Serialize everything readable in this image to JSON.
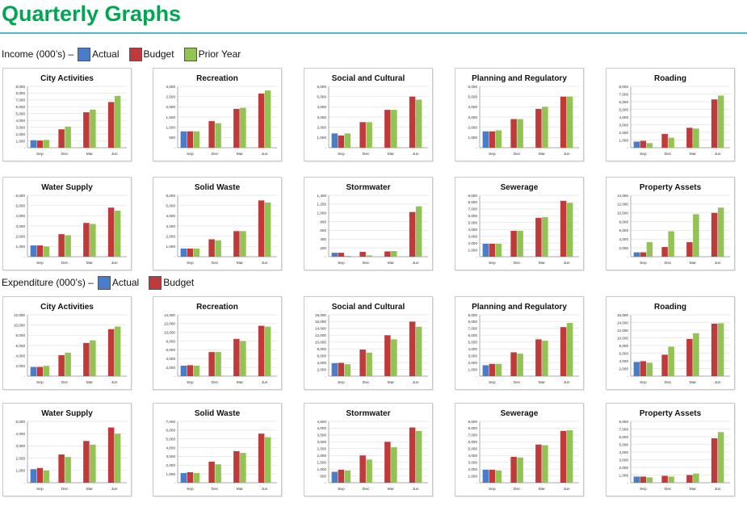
{
  "page": {
    "title": "Quarterly Graphs"
  },
  "colors": {
    "title": "#00a651",
    "rule": "#4fb8c2",
    "actual": "#4a7dc9",
    "budget": "#c0393b",
    "prior_year": "#92c353",
    "grid": "#e2e2e2",
    "axis": "#8c8c8c"
  },
  "legends": [
    {
      "section": "Income (000’s) –",
      "items": [
        {
          "label": "Actual",
          "key": "actual"
        },
        {
          "label": "Budget",
          "key": "budget"
        },
        {
          "label": "Prior Year",
          "key": "prior_year"
        }
      ]
    },
    {
      "section": "Expenditure (000’s) –",
      "items": [
        {
          "label": "Actual",
          "key": "actual"
        },
        {
          "label": "Budget",
          "key": "budget"
        }
      ]
    }
  ],
  "chart_data": [
    {
      "section": "income",
      "type": "bar",
      "title": "City Activities",
      "categories": [
        "Sep",
        "Dec",
        "Mar",
        "Jun"
      ],
      "yticks": [
        "-",
        "1,000",
        "2,000",
        "3,000",
        "4,000",
        "5,000",
        "6,000",
        "7,000",
        "8,000",
        "9,000"
      ],
      "ylim": [
        0,
        9000
      ],
      "series": [
        {
          "name": "Actual",
          "values": [
            1100,
            null,
            null,
            null
          ]
        },
        {
          "name": "Budget",
          "values": [
            1050,
            2700,
            5200,
            6700
          ]
        },
        {
          "name": "Prior Year",
          "values": [
            1150,
            3100,
            5600,
            7600
          ]
        }
      ]
    },
    {
      "section": "income",
      "type": "bar",
      "title": "Recreation",
      "categories": [
        "Sep",
        "Dec",
        "Mar",
        "Jun"
      ],
      "yticks": [
        "-",
        "500",
        "1,000",
        "1,500",
        "2,000",
        "2,500",
        "3,000"
      ],
      "ylim": [
        0,
        3000
      ],
      "series": [
        {
          "name": "Actual",
          "values": [
            800,
            null,
            null,
            null
          ]
        },
        {
          "name": "Budget",
          "values": [
            800,
            1300,
            1900,
            2650
          ]
        },
        {
          "name": "Prior Year",
          "values": [
            800,
            1200,
            1950,
            2800
          ]
        }
      ]
    },
    {
      "section": "income",
      "type": "bar",
      "title": "Social and Cultural",
      "categories": [
        "Sep",
        "Dec",
        "Mar",
        "Jun"
      ],
      "yticks": [
        "-",
        "1,000",
        "2,000",
        "3,000",
        "4,000",
        "5,000",
        "6,000"
      ],
      "ylim": [
        0,
        6000
      ],
      "series": [
        {
          "name": "Actual",
          "values": [
            1400,
            null,
            null,
            null
          ]
        },
        {
          "name": "Budget",
          "values": [
            1200,
            2500,
            3700,
            5000
          ]
        },
        {
          "name": "Prior Year",
          "values": [
            1400,
            2500,
            3700,
            4700
          ]
        }
      ]
    },
    {
      "section": "income",
      "type": "bar",
      "title": "Planning and Regulatory",
      "categories": [
        "Sep",
        "Dec",
        "Mar",
        "Jun"
      ],
      "yticks": [
        "-",
        "1,000",
        "2,000",
        "3,000",
        "4,000",
        "5,000",
        "6,000"
      ],
      "ylim": [
        0,
        6000
      ],
      "series": [
        {
          "name": "Actual",
          "values": [
            1600,
            null,
            null,
            null
          ]
        },
        {
          "name": "Budget",
          "values": [
            1600,
            2800,
            3800,
            5000
          ]
        },
        {
          "name": "Prior Year",
          "values": [
            1700,
            2800,
            4000,
            5000
          ]
        }
      ]
    },
    {
      "section": "income",
      "type": "bar",
      "title": "Roading",
      "categories": [
        "Sep",
        "Dec",
        "Mar",
        "Jun"
      ],
      "yticks": [
        "-",
        "1,000",
        "2,000",
        "3,000",
        "4,000",
        "5,000",
        "6,000",
        "7,000",
        "8,000"
      ],
      "ylim": [
        0,
        8000
      ],
      "series": [
        {
          "name": "Actual",
          "values": [
            800,
            null,
            null,
            null
          ]
        },
        {
          "name": "Budget",
          "values": [
            900,
            1800,
            2600,
            6300
          ]
        },
        {
          "name": "Prior Year",
          "values": [
            600,
            1300,
            2500,
            6800
          ]
        }
      ]
    },
    {
      "section": "income",
      "type": "bar",
      "title": "Water Supply",
      "categories": [
        "Sep",
        "Dec",
        "Mar",
        "Jun"
      ],
      "yticks": [
        "-",
        "1,000",
        "2,000",
        "3,000",
        "4,000",
        "5,000",
        "6,000"
      ],
      "ylim": [
        0,
        6000
      ],
      "series": [
        {
          "name": "Actual",
          "values": [
            1100,
            null,
            null,
            null
          ]
        },
        {
          "name": "Budget",
          "values": [
            1100,
            2200,
            3300,
            4800
          ]
        },
        {
          "name": "Prior Year",
          "values": [
            1000,
            2100,
            3200,
            4500
          ]
        }
      ]
    },
    {
      "section": "income",
      "type": "bar",
      "title": "Solid Waste",
      "categories": [
        "Sep",
        "Dec",
        "Mar",
        "Jun"
      ],
      "yticks": [
        "-",
        "1,000",
        "2,000",
        "3,000",
        "4,000",
        "5,000",
        "6,000"
      ],
      "ylim": [
        0,
        6000
      ],
      "series": [
        {
          "name": "Actual",
          "values": [
            800,
            null,
            null,
            null
          ]
        },
        {
          "name": "Budget",
          "values": [
            800,
            1700,
            2500,
            5500
          ]
        },
        {
          "name": "Prior Year",
          "values": [
            800,
            1600,
            2500,
            5300
          ]
        }
      ]
    },
    {
      "section": "income",
      "type": "bar",
      "title": "Stormwater",
      "categories": [
        "Sep",
        "Dec",
        "Mar",
        "Jun"
      ],
      "yticks": [
        "-",
        "200",
        "400",
        "600",
        "800",
        "1,000",
        "1,200",
        "1,400"
      ],
      "ylim": [
        0,
        1400
      ],
      "series": [
        {
          "name": "Actual",
          "values": [
            90,
            null,
            null,
            null
          ]
        },
        {
          "name": "Budget",
          "values": [
            90,
            110,
            120,
            1020
          ]
        },
        {
          "name": "Prior Year",
          "values": [
            20,
            30,
            130,
            1150
          ]
        }
      ]
    },
    {
      "section": "income",
      "type": "bar",
      "title": "Sewerage",
      "categories": [
        "Sep",
        "Dec",
        "Mar",
        "Jun"
      ],
      "yticks": [
        "-",
        "1,000",
        "2,000",
        "3,000",
        "4,000",
        "5,000",
        "6,000",
        "7,000",
        "8,000",
        "9,000"
      ],
      "ylim": [
        0,
        9000
      ],
      "series": [
        {
          "name": "Actual",
          "values": [
            1900,
            null,
            null,
            null
          ]
        },
        {
          "name": "Budget",
          "values": [
            1900,
            3800,
            5700,
            8200
          ]
        },
        {
          "name": "Prior Year",
          "values": [
            1900,
            3800,
            5800,
            7900
          ]
        }
      ]
    },
    {
      "section": "income",
      "type": "bar",
      "title": "Property Assets",
      "categories": [
        "Sep",
        "Dec",
        "Mar",
        "Jun"
      ],
      "yticks": [
        "-",
        "2,000",
        "4,000",
        "6,000",
        "8,000",
        "10,000",
        "12,000",
        "14,000"
      ],
      "ylim": [
        0,
        14000
      ],
      "series": [
        {
          "name": "Actual",
          "values": [
            1000,
            null,
            null,
            null
          ]
        },
        {
          "name": "Budget",
          "values": [
            1000,
            2200,
            3300,
            10000
          ]
        },
        {
          "name": "Prior Year",
          "values": [
            3300,
            5800,
            9700,
            11200
          ]
        }
      ]
    },
    {
      "section": "expenditure",
      "type": "bar",
      "title": "City Activities",
      "categories": [
        "Sep",
        "Dec",
        "Mar",
        "Jun"
      ],
      "yticks": [
        "-",
        "2,000",
        "4,000",
        "6,000",
        "8,000",
        "10,000",
        "12,000"
      ],
      "ylim": [
        0,
        12000
      ],
      "series": [
        {
          "name": "Actual",
          "values": [
            1800,
            null,
            null,
            null
          ]
        },
        {
          "name": "Budget",
          "values": [
            1800,
            4100,
            6500,
            9200
          ]
        },
        {
          "name": "Prior Year",
          "values": [
            2000,
            4600,
            7000,
            9700
          ]
        }
      ]
    },
    {
      "section": "expenditure",
      "type": "bar",
      "title": "Recreation",
      "categories": [
        "Sep",
        "Dec",
        "Mar",
        "Jun"
      ],
      "yticks": [
        "-",
        "2,000",
        "4,000",
        "6,000",
        "8,000",
        "10,000",
        "12,000",
        "14,000"
      ],
      "ylim": [
        0,
        14000
      ],
      "series": [
        {
          "name": "Actual",
          "values": [
            2400,
            null,
            null,
            null
          ]
        },
        {
          "name": "Budget",
          "values": [
            2500,
            5500,
            8500,
            11500
          ]
        },
        {
          "name": "Prior Year",
          "values": [
            2400,
            5500,
            8000,
            11300
          ]
        }
      ]
    },
    {
      "section": "expenditure",
      "type": "bar",
      "title": "Social and Cultural",
      "categories": [
        "Sep",
        "Dec",
        "Mar",
        "Jun"
      ],
      "yticks": [
        "-",
        "2,000",
        "4,000",
        "6,000",
        "8,000",
        "10,000",
        "12,000",
        "14,000",
        "16,000",
        "18,000"
      ],
      "ylim": [
        0,
        18000
      ],
      "series": [
        {
          "name": "Actual",
          "values": [
            3800,
            null,
            null,
            null
          ]
        },
        {
          "name": "Budget",
          "values": [
            3900,
            7800,
            12000,
            16000
          ]
        },
        {
          "name": "Prior Year",
          "values": [
            3500,
            6900,
            10800,
            14500
          ]
        }
      ]
    },
    {
      "section": "expenditure",
      "type": "bar",
      "title": "Planning and Regulatory",
      "categories": [
        "Sep",
        "Dec",
        "Mar",
        "Jun"
      ],
      "yticks": [
        "-",
        "1,000",
        "2,000",
        "3,000",
        "4,000",
        "5,000",
        "6,000",
        "7,000",
        "8,000",
        "9,000"
      ],
      "ylim": [
        0,
        9000
      ],
      "series": [
        {
          "name": "Actual",
          "values": [
            1600,
            null,
            null,
            null
          ]
        },
        {
          "name": "Budget",
          "values": [
            1800,
            3500,
            5400,
            7200
          ]
        },
        {
          "name": "Prior Year",
          "values": [
            1800,
            3300,
            5200,
            7800
          ]
        }
      ]
    },
    {
      "section": "expenditure",
      "type": "bar",
      "title": "Roading",
      "categories": [
        "Sep",
        "Dec",
        "Mar",
        "Jun"
      ],
      "yticks": [
        "-",
        "2,000",
        "4,000",
        "6,000",
        "8,000",
        "10,000",
        "12,000",
        "14,000",
        "16,000"
      ],
      "ylim": [
        0,
        16000
      ],
      "series": [
        {
          "name": "Actual",
          "values": [
            3700,
            null,
            null,
            null
          ]
        },
        {
          "name": "Budget",
          "values": [
            3900,
            5600,
            9700,
            13700
          ]
        },
        {
          "name": "Prior Year",
          "values": [
            3500,
            7700,
            11200,
            13800
          ]
        }
      ]
    },
    {
      "section": "expenditure",
      "type": "bar",
      "title": "Water Supply",
      "categories": [
        "Sep",
        "Dec",
        "Mar",
        "Jun"
      ],
      "yticks": [
        "-",
        "1,000",
        "2,000",
        "3,000",
        "4,000",
        "5,000"
      ],
      "ylim": [
        0,
        5000
      ],
      "series": [
        {
          "name": "Actual",
          "values": [
            1100,
            null,
            null,
            null
          ]
        },
        {
          "name": "Budget",
          "values": [
            1200,
            2300,
            3400,
            4500
          ]
        },
        {
          "name": "Prior Year",
          "values": [
            1000,
            2100,
            3100,
            4000
          ]
        }
      ]
    },
    {
      "section": "expenditure",
      "type": "bar",
      "title": "Solid Waste",
      "categories": [
        "Sep",
        "Dec",
        "Mar",
        "Jun"
      ],
      "yticks": [
        "-",
        "1,000",
        "2,000",
        "3,000",
        "4,000",
        "5,000",
        "6,000",
        "7,000"
      ],
      "ylim": [
        0,
        7000
      ],
      "series": [
        {
          "name": "Actual",
          "values": [
            1100,
            null,
            null,
            null
          ]
        },
        {
          "name": "Budget",
          "values": [
            1200,
            2400,
            3600,
            5600
          ]
        },
        {
          "name": "Prior Year",
          "values": [
            1100,
            2100,
            3400,
            5200
          ]
        }
      ]
    },
    {
      "section": "expenditure",
      "type": "bar",
      "title": "Stormwater",
      "categories": [
        "Sep",
        "Dec",
        "Mar",
        "Jun"
      ],
      "yticks": [
        "-",
        "500",
        "1,000",
        "1,500",
        "2,000",
        "2,500",
        "3,000",
        "3,500",
        "4,000",
        "4,500"
      ],
      "ylim": [
        0,
        4500
      ],
      "series": [
        {
          "name": "Actual",
          "values": [
            800,
            null,
            null,
            null
          ]
        },
        {
          "name": "Budget",
          "values": [
            950,
            2000,
            3000,
            4050
          ]
        },
        {
          "name": "Prior Year",
          "values": [
            900,
            1700,
            2600,
            3800
          ]
        }
      ]
    },
    {
      "section": "expenditure",
      "type": "bar",
      "title": "Sewerage",
      "categories": [
        "Sep",
        "Dec",
        "Mar",
        "Jun"
      ],
      "yticks": [
        "-",
        "1,000",
        "2,000",
        "3,000",
        "4,000",
        "5,000",
        "6,000",
        "7,000",
        "8,000",
        "9,000"
      ],
      "ylim": [
        0,
        9000
      ],
      "series": [
        {
          "name": "Actual",
          "values": [
            1900,
            null,
            null,
            null
          ]
        },
        {
          "name": "Budget",
          "values": [
            1900,
            3800,
            5600,
            7600
          ]
        },
        {
          "name": "Prior Year",
          "values": [
            1800,
            3700,
            5500,
            7700
          ]
        }
      ]
    },
    {
      "section": "expenditure",
      "type": "bar",
      "title": "Property Assets",
      "categories": [
        "Sep",
        "Dec",
        "Mar",
        "Jun"
      ],
      "yticks": [
        "-",
        "1,000",
        "2,000",
        "3,000",
        "4,000",
        "5,000",
        "6,000",
        "7,000",
        "8,000"
      ],
      "ylim": [
        0,
        8000
      ],
      "series": [
        {
          "name": "Actual",
          "values": [
            800,
            null,
            null,
            null
          ]
        },
        {
          "name": "Budget",
          "values": [
            800,
            900,
            1000,
            5800
          ]
        },
        {
          "name": "Prior Year",
          "values": [
            700,
            800,
            1200,
            6600
          ]
        }
      ]
    }
  ]
}
